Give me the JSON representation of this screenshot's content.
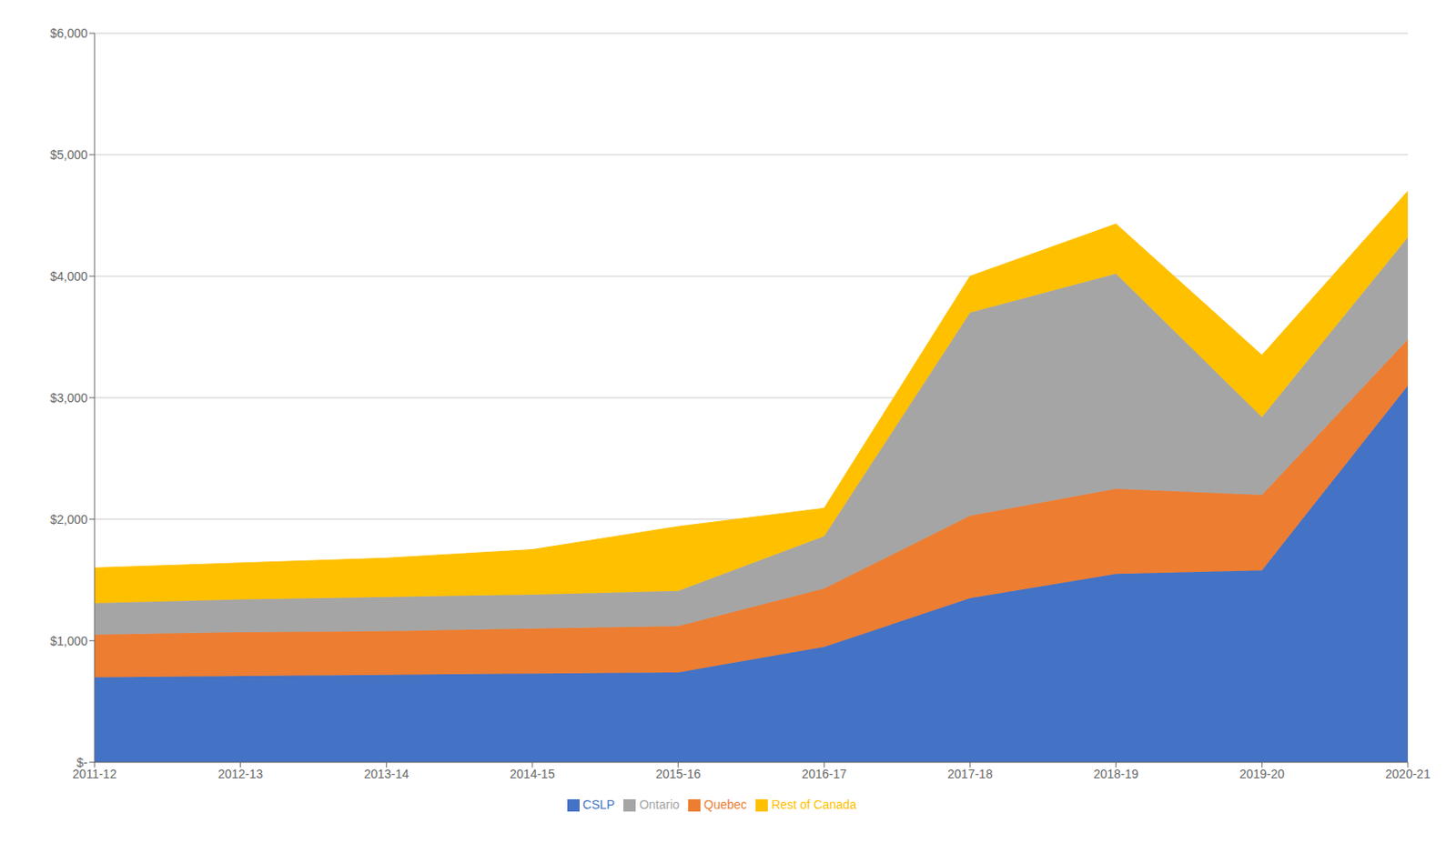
{
  "chart_data": {
    "type": "area",
    "stacked": true,
    "grid": true,
    "legend": "bottom",
    "categories": [
      "2011-12",
      "2012-13",
      "2013-14",
      "2014-15",
      "2015-16",
      "2016-17",
      "2017-18",
      "2018-19",
      "2019-20",
      "2020-21"
    ],
    "series": [
      {
        "name": "CSLP",
        "color": "#4472C4",
        "values": [
          700,
          710,
          720,
          730,
          740,
          950,
          1350,
          1550,
          1580,
          3100
        ]
      },
      {
        "name": "Quebec",
        "color": "#ED7D31",
        "values": [
          350,
          360,
          360,
          370,
          380,
          480,
          680,
          700,
          620,
          380
        ]
      },
      {
        "name": "Ontario",
        "color": "#A5A5A5",
        "values": [
          260,
          270,
          280,
          280,
          290,
          430,
          1670,
          1770,
          640,
          840
        ]
      },
      {
        "name": "Rest of Canada",
        "color": "#FFC000",
        "values": [
          290,
          300,
          320,
          370,
          530,
          230,
          300,
          410,
          510,
          380
        ]
      }
    ],
    "ylim": [
      0,
      6000
    ],
    "yticks": [
      {
        "value": 0,
        "label": "$-"
      },
      {
        "value": 1000,
        "label": "$1,000"
      },
      {
        "value": 2000,
        "label": "$2,000"
      },
      {
        "value": 3000,
        "label": "$3,000"
      },
      {
        "value": 4000,
        "label": "$4,000"
      },
      {
        "value": 5000,
        "label": "$5,000"
      },
      {
        "value": 6000,
        "label": "$6,000"
      }
    ]
  }
}
